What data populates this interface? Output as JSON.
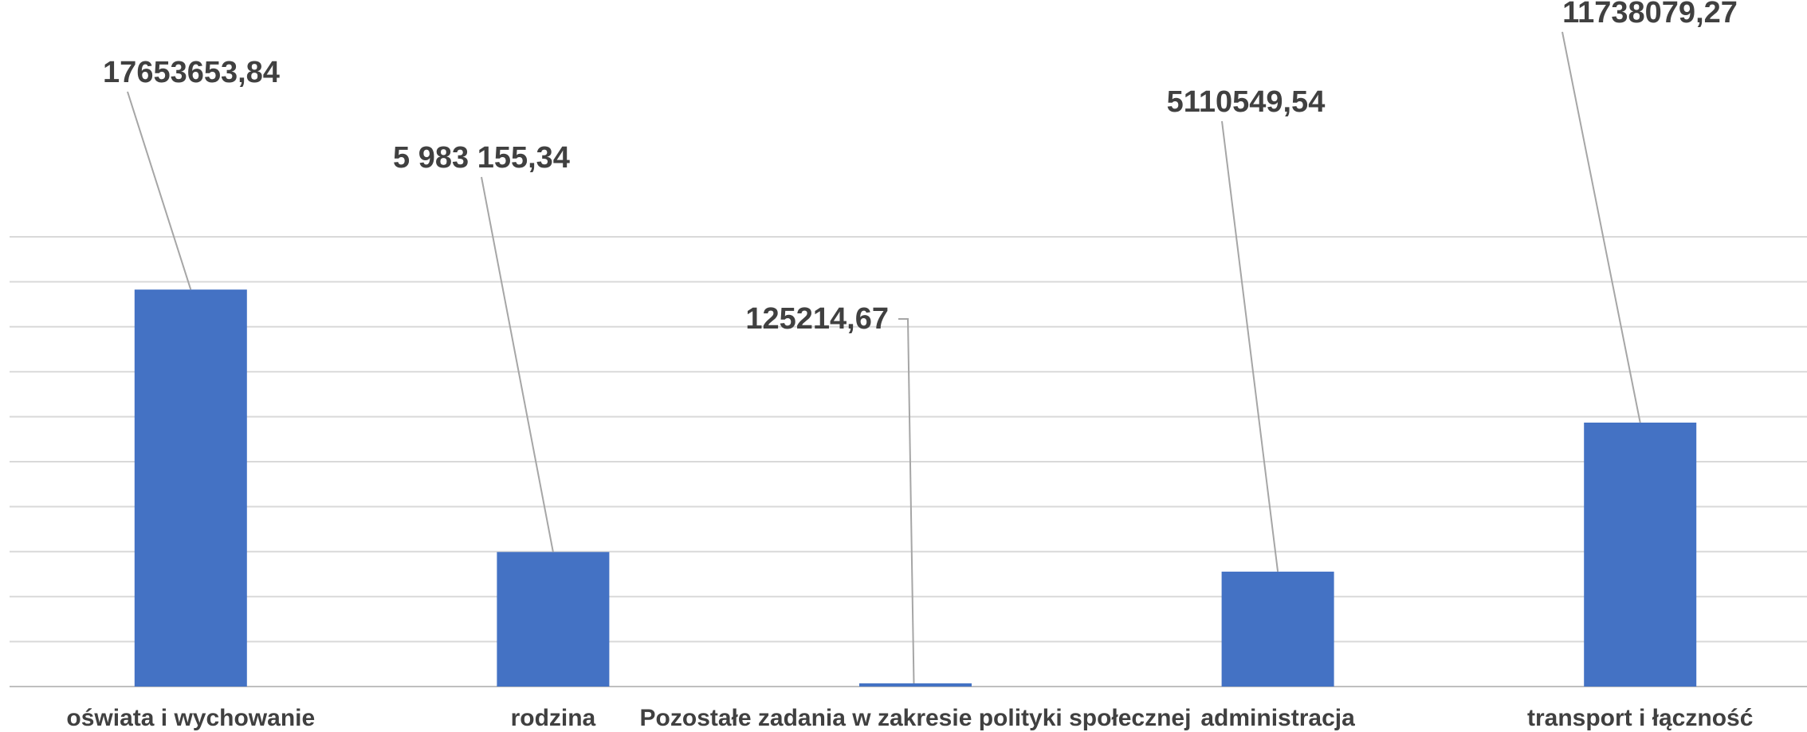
{
  "chart_data": {
    "type": "bar",
    "title": "",
    "xlabel": "",
    "ylabel": "",
    "categories": [
      "oświata i wychowanie",
      "rodzina",
      "Pozostałe zadania w zakresie polityki społecznej",
      "administracja",
      "transport i łączność"
    ],
    "values": [
      17653653.84,
      5983155.34,
      125214.67,
      5110549.54,
      11738079.27
    ],
    "data_labels": [
      "17653653,84",
      "5 983 155,34",
      "125214,67",
      "5110549,54",
      "11738079,27"
    ],
    "ylim": [
      0,
      20000000
    ],
    "grid": true,
    "bar_color": "#4472c4",
    "label_color": "#404040",
    "grid_color": "#d9d9d9"
  }
}
